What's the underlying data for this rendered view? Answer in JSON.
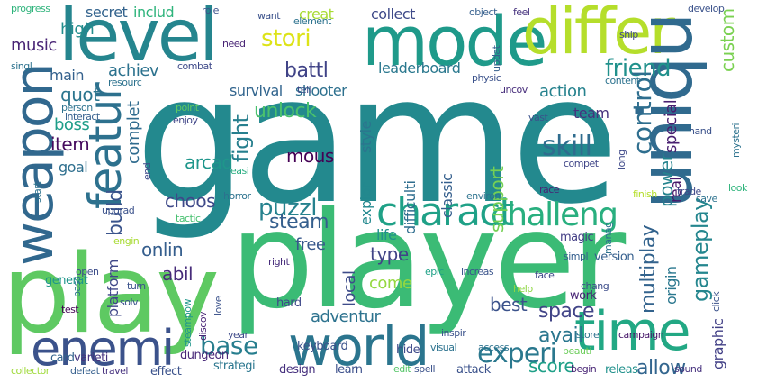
{
  "words": [
    {
      "text": "game",
      "color": "#23898e"
    },
    {
      "text": "player",
      "color": "#3bbb75"
    },
    {
      "text": "play",
      "color": "#5ec962"
    },
    {
      "text": "level",
      "color": "#25858e"
    },
    {
      "text": "mode",
      "color": "#1f9a8a"
    },
    {
      "text": "differ",
      "color": "#b5de2b"
    },
    {
      "text": "uniqu",
      "color": "#306a8e"
    },
    {
      "text": "weapon",
      "color": "#31688e"
    },
    {
      "text": "featur",
      "color": "#2d718e"
    },
    {
      "text": "charact",
      "color": "#1fa187"
    },
    {
      "text": "challeng",
      "color": "#29af7f"
    },
    {
      "text": "world",
      "color": "#2b758e"
    },
    {
      "text": "enemi",
      "color": "#3b528b"
    },
    {
      "text": "time",
      "color": "#22a884"
    },
    {
      "text": "experi",
      "color": "#2a788e"
    },
    {
      "text": "friend",
      "color": "#21918c"
    },
    {
      "text": "stori",
      "color": "#dde318"
    },
    {
      "text": "control",
      "color": "#2e6e8e"
    },
    {
      "text": "skill",
      "color": "#2f6c8e"
    },
    {
      "text": "puzzl",
      "color": "#26828e"
    },
    {
      "text": "unlock",
      "color": "#4ac16d"
    },
    {
      "text": "battl",
      "color": "#404387"
    },
    {
      "text": "fight",
      "color": "#277f8e"
    },
    {
      "text": "steam",
      "color": "#355f8d"
    },
    {
      "text": "choos",
      "color": "#3e4989"
    },
    {
      "text": "build",
      "color": "#3a548c"
    },
    {
      "text": "gameplay",
      "color": "#24868e"
    },
    {
      "text": "onlin",
      "color": "#355e8d"
    },
    {
      "text": "abil",
      "color": "#472c7a"
    },
    {
      "text": "base",
      "color": "#277e8e"
    },
    {
      "text": "adventur",
      "color": "#2c728e"
    },
    {
      "text": "multiplay",
      "color": "#33638d"
    },
    {
      "text": "support",
      "color": "#75d054"
    },
    {
      "text": "space",
      "color": "#414487"
    },
    {
      "text": "best",
      "color": "#3b528b"
    },
    {
      "text": "avail",
      "color": "#2a768e"
    },
    {
      "text": "score",
      "color": "#1fa088"
    },
    {
      "text": "allow",
      "color": "#32658e"
    },
    {
      "text": "power",
      "color": "#25838e"
    },
    {
      "text": "arcad",
      "color": "#1f968b"
    },
    {
      "text": "mous",
      "color": "#440154"
    },
    {
      "text": "special",
      "color": "#481f70"
    },
    {
      "text": "custom",
      "color": "#7ad151"
    },
    {
      "text": "achiev",
      "color": "#2c728e"
    },
    {
      "text": "survival",
      "color": "#32658e"
    },
    {
      "text": "shooter",
      "color": "#2d708e"
    },
    {
      "text": "leaderboard",
      "color": "#2a788e"
    },
    {
      "text": "action",
      "color": "#26828e"
    },
    {
      "text": "quot",
      "color": "#2b758e"
    },
    {
      "text": "main",
      "color": "#34618d"
    },
    {
      "text": "boss",
      "color": "#1f9e89"
    },
    {
      "text": "item",
      "color": "#460b5e"
    },
    {
      "text": "goal",
      "color": "#2e6f8e"
    },
    {
      "text": "complet",
      "color": "#2f6b8e"
    },
    {
      "text": "high",
      "color": "#228d8d"
    },
    {
      "text": "music",
      "color": "#482475"
    },
    {
      "text": "secret",
      "color": "#33638d"
    },
    {
      "text": "includ",
      "color": "#2fb47c"
    },
    {
      "text": "creat",
      "color": "#a8db34"
    },
    {
      "text": "collect",
      "color": "#3e4a89"
    },
    {
      "text": "origin",
      "color": "#2a778e"
    },
    {
      "text": "real",
      "color": "#481769"
    },
    {
      "text": "graphic",
      "color": "#424086"
    },
    {
      "text": "free",
      "color": "#38588c"
    },
    {
      "text": "type",
      "color": "#414487"
    },
    {
      "text": "life",
      "color": "#21918c"
    },
    {
      "text": "come",
      "color": "#95d840"
    },
    {
      "text": "local",
      "color": "#3e4c8a"
    },
    {
      "text": "team",
      "color": "#46327e"
    },
    {
      "text": "classic",
      "color": "#355f8d"
    },
    {
      "text": "difficulti",
      "color": "#2e6d8e"
    },
    {
      "text": "explor",
      "color": "#23888e"
    },
    {
      "text": "style",
      "color": "#2b758e"
    },
    {
      "text": "platform",
      "color": "#3f4788"
    },
    {
      "text": "generat",
      "color": "#1f968b"
    },
    {
      "text": "varieti",
      "color": "#46337e"
    },
    {
      "text": "card",
      "color": "#33638d"
    },
    {
      "text": "collector",
      "color": "#9fda3a"
    },
    {
      "text": "defeat",
      "color": "#355f8d"
    },
    {
      "text": "travel",
      "color": "#46317e"
    },
    {
      "text": "effect",
      "color": "#3b528b"
    },
    {
      "text": "dungeon",
      "color": "#482878"
    },
    {
      "text": "strategi",
      "color": "#2a768e"
    },
    {
      "text": "design",
      "color": "#46307e"
    },
    {
      "text": "learn",
      "color": "#3c508b"
    },
    {
      "text": "edit",
      "color": "#54c568"
    },
    {
      "text": "spell",
      "color": "#3b528b"
    },
    {
      "text": "attack",
      "color": "#3b528b"
    },
    {
      "text": "begin",
      "color": "#482475"
    },
    {
      "text": "releas",
      "color": "#21918c"
    },
    {
      "text": "sound",
      "color": "#46327e"
    },
    {
      "text": "keyboard",
      "color": "#3b528b"
    },
    {
      "text": "hide",
      "color": "#3e4a89"
    },
    {
      "text": "hard",
      "color": "#3e4989"
    },
    {
      "text": "right",
      "color": "#472d7b"
    },
    {
      "text": "magic",
      "color": "#433e85"
    },
    {
      "text": "version",
      "color": "#355f8d"
    },
    {
      "text": "simpl",
      "color": "#355f8d"
    },
    {
      "text": "increas",
      "color": "#3a548c"
    },
    {
      "text": "epic",
      "color": "#1fa187"
    },
    {
      "text": "face",
      "color": "#3e4989"
    },
    {
      "text": "help",
      "color": "#8fd744"
    },
    {
      "text": "chang",
      "color": "#3d4d8a"
    },
    {
      "text": "work",
      "color": "#482475"
    },
    {
      "text": "visual",
      "color": "#2c728e"
    },
    {
      "text": "access",
      "color": "#2c728e"
    },
    {
      "text": "inspir",
      "color": "#3b528b"
    },
    {
      "text": "store",
      "color": "#2c728e"
    },
    {
      "text": "campaign",
      "color": "#48186a"
    },
    {
      "text": "beauti",
      "color": "#6ccd5a"
    },
    {
      "text": "year",
      "color": "#3e4989"
    },
    {
      "text": "discov",
      "color": "#482475"
    },
    {
      "text": "love",
      "color": "#3b528b"
    },
    {
      "text": "steampow",
      "color": "#1f968b"
    },
    {
      "text": "test",
      "color": "#440154"
    },
    {
      "text": "pass",
      "color": "#2c728e"
    },
    {
      "text": "open",
      "color": "#3d4d8a"
    },
    {
      "text": "turn",
      "color": "#3b528b"
    },
    {
      "text": "solv",
      "color": "#3b528b"
    },
    {
      "text": "engin",
      "color": "#a8db34"
    },
    {
      "text": "tactic",
      "color": "#46c06f"
    },
    {
      "text": "upgrad",
      "color": "#3b528b"
    },
    {
      "text": "start",
      "color": "#2c728e"
    },
    {
      "text": "end",
      "color": "#3e4989"
    },
    {
      "text": "horror",
      "color": "#2c728e"
    },
    {
      "text": "easi",
      "color": "#27ad81"
    },
    {
      "text": "enjoy",
      "color": "#404688"
    },
    {
      "text": "interact",
      "color": "#355f8d"
    },
    {
      "text": "person",
      "color": "#2c728e"
    },
    {
      "text": "point",
      "color": "#5ec962"
    },
    {
      "text": "resourc",
      "color": "#2c728e"
    },
    {
      "text": "combat",
      "color": "#3e4989"
    },
    {
      "text": "role",
      "color": "#3b528b"
    },
    {
      "text": "need",
      "color": "#482475"
    },
    {
      "text": "want",
      "color": "#3b528b"
    },
    {
      "text": "element",
      "color": "#2c728e"
    },
    {
      "text": "object",
      "color": "#355f8d"
    },
    {
      "text": "feel",
      "color": "#46327e"
    },
    {
      "text": "updat",
      "color": "#355f8d"
    },
    {
      "text": "physic",
      "color": "#3b528b"
    },
    {
      "text": "uncov",
      "color": "#472d7b"
    },
    {
      "text": "content",
      "color": "#2c728e"
    },
    {
      "text": "tell",
      "color": "#3e4989"
    },
    {
      "text": "vast",
      "color": "#3b528b"
    },
    {
      "text": "compet",
      "color": "#404688"
    },
    {
      "text": "long",
      "color": "#3e4989"
    },
    {
      "text": "race",
      "color": "#482475"
    },
    {
      "text": "environ",
      "color": "#2c728e"
    },
    {
      "text": "finish",
      "color": "#b5de2b"
    },
    {
      "text": "trade",
      "color": "#3e4989"
    },
    {
      "text": "save",
      "color": "#2c728e"
    },
    {
      "text": "look",
      "color": "#2fb47c"
    },
    {
      "text": "manag",
      "color": "#2c728e"
    },
    {
      "text": "hand",
      "color": "#3b528b"
    },
    {
      "text": "mysteri",
      "color": "#2c728e"
    },
    {
      "text": "click",
      "color": "#3b528b"
    },
    {
      "text": "progress",
      "color": "#2fb47c"
    },
    {
      "text": "singl",
      "color": "#2c728e"
    },
    {
      "text": "develop",
      "color": "#3b528b"
    },
    {
      "text": "ship",
      "color": "#3e4989"
    }
  ]
}
